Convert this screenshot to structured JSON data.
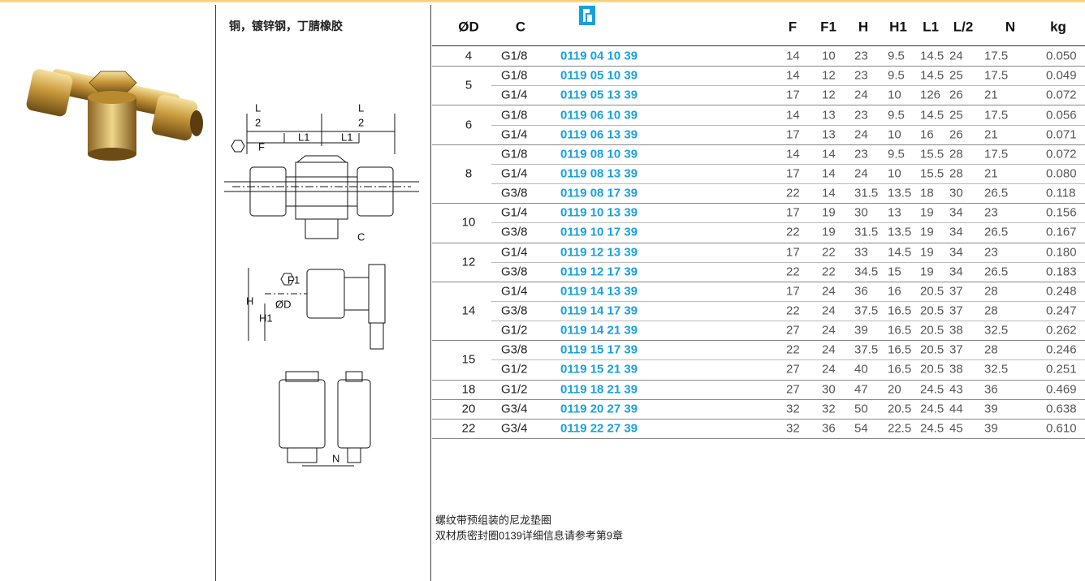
{
  "header": {
    "title": "铜，镀锌钢，丁腈橡胶"
  },
  "drawing": {
    "labels": [
      "L",
      "2",
      "L",
      "2",
      "L1",
      "L1",
      "F",
      "C",
      "F1",
      "H",
      "H1",
      "ØD",
      "N"
    ]
  },
  "table": {
    "columns": [
      "ØD",
      "C",
      "F",
      "F1",
      "H",
      "H1",
      "L1",
      "L/2",
      "N",
      "kg"
    ],
    "groups": [
      {
        "d": "4",
        "rows": [
          [
            "G1/8",
            "0119 04 10 39",
            "14",
            "10",
            "23",
            "9.5",
            "14.5",
            "24",
            "17.5",
            "0.050"
          ]
        ]
      },
      {
        "d": "5",
        "rows": [
          [
            "G1/8",
            "0119 05 10 39",
            "14",
            "12",
            "23",
            "9.5",
            "14.5",
            "25",
            "17.5",
            "0.049"
          ],
          [
            "G1/4",
            "0119 05 13 39",
            "17",
            "12",
            "24",
            "10",
            "126",
            "26",
            "21",
            "0.072"
          ]
        ]
      },
      {
        "d": "6",
        "rows": [
          [
            "G1/8",
            "0119 06 10 39",
            "14",
            "13",
            "23",
            "9.5",
            "14.5",
            "25",
            "17.5",
            "0.056"
          ],
          [
            "G1/4",
            "0119 06 13 39",
            "17",
            "13",
            "24",
            "10",
            "16",
            "26",
            "21",
            "0.071"
          ]
        ]
      },
      {
        "d": "8",
        "rows": [
          [
            "G1/8",
            "0119 08 10 39",
            "14",
            "14",
            "23",
            "9.5",
            "15.5",
            "28",
            "17.5",
            "0.072"
          ],
          [
            "G1/4",
            "0119 08 13 39",
            "17",
            "14",
            "24",
            "10",
            "15.5",
            "28",
            "21",
            "0.080"
          ],
          [
            "G3/8",
            "0119 08 17 39",
            "22",
            "14",
            "31.5",
            "13.5",
            "18",
            "30",
            "26.5",
            "0.118"
          ]
        ]
      },
      {
        "d": "10",
        "rows": [
          [
            "G1/4",
            "0119 10 13 39",
            "17",
            "19",
            "30",
            "13",
            "19",
            "34",
            "23",
            "0.156"
          ],
          [
            "G3/8",
            "0119 10 17 39",
            "22",
            "19",
            "31.5",
            "13.5",
            "19",
            "34",
            "26.5",
            "0.167"
          ]
        ]
      },
      {
        "d": "12",
        "rows": [
          [
            "G1/4",
            "0119 12 13 39",
            "17",
            "22",
            "33",
            "14.5",
            "19",
            "34",
            "23",
            "0.180"
          ],
          [
            "G3/8",
            "0119 12 17 39",
            "22",
            "22",
            "34.5",
            "15",
            "19",
            "34",
            "26.5",
            "0.183"
          ]
        ]
      },
      {
        "d": "14",
        "rows": [
          [
            "G1/4",
            "0119 14 13 39",
            "17",
            "24",
            "36",
            "16",
            "20.5",
            "37",
            "28",
            "0.248"
          ],
          [
            "G3/8",
            "0119 14 17 39",
            "22",
            "24",
            "37.5",
            "16.5",
            "20.5",
            "37",
            "28",
            "0.247"
          ],
          [
            "G1/2",
            "0119 14 21 39",
            "27",
            "24",
            "39",
            "16.5",
            "20.5",
            "38",
            "32.5",
            "0.262"
          ]
        ]
      },
      {
        "d": "15",
        "rows": [
          [
            "G3/8",
            "0119 15 17 39",
            "22",
            "24",
            "37.5",
            "16.5",
            "20.5",
            "37",
            "28",
            "0.246"
          ],
          [
            "G1/2",
            "0119 15 21 39",
            "27",
            "24",
            "40",
            "16.5",
            "20.5",
            "38",
            "32.5",
            "0.251"
          ]
        ]
      },
      {
        "d": "18",
        "rows": [
          [
            "G1/2",
            "0119 18 21 39",
            "27",
            "30",
            "47",
            "20",
            "24.5",
            "43",
            "36",
            "0.469"
          ]
        ]
      },
      {
        "d": "20",
        "rows": [
          [
            "G3/4",
            "0119 20 27 39",
            "32",
            "32",
            "50",
            "20.5",
            "24.5",
            "44",
            "39",
            "0.638"
          ]
        ]
      },
      {
        "d": "22",
        "rows": [
          [
            "G3/4",
            "0119 22 27 39",
            "32",
            "36",
            "54",
            "22.5",
            "24.5",
            "45",
            "39",
            "0.610"
          ]
        ]
      }
    ]
  },
  "notes": [
    "螺纹带预组装的尼龙垫圈",
    "双材质密封圈0139详细信息请参考第9章"
  ]
}
